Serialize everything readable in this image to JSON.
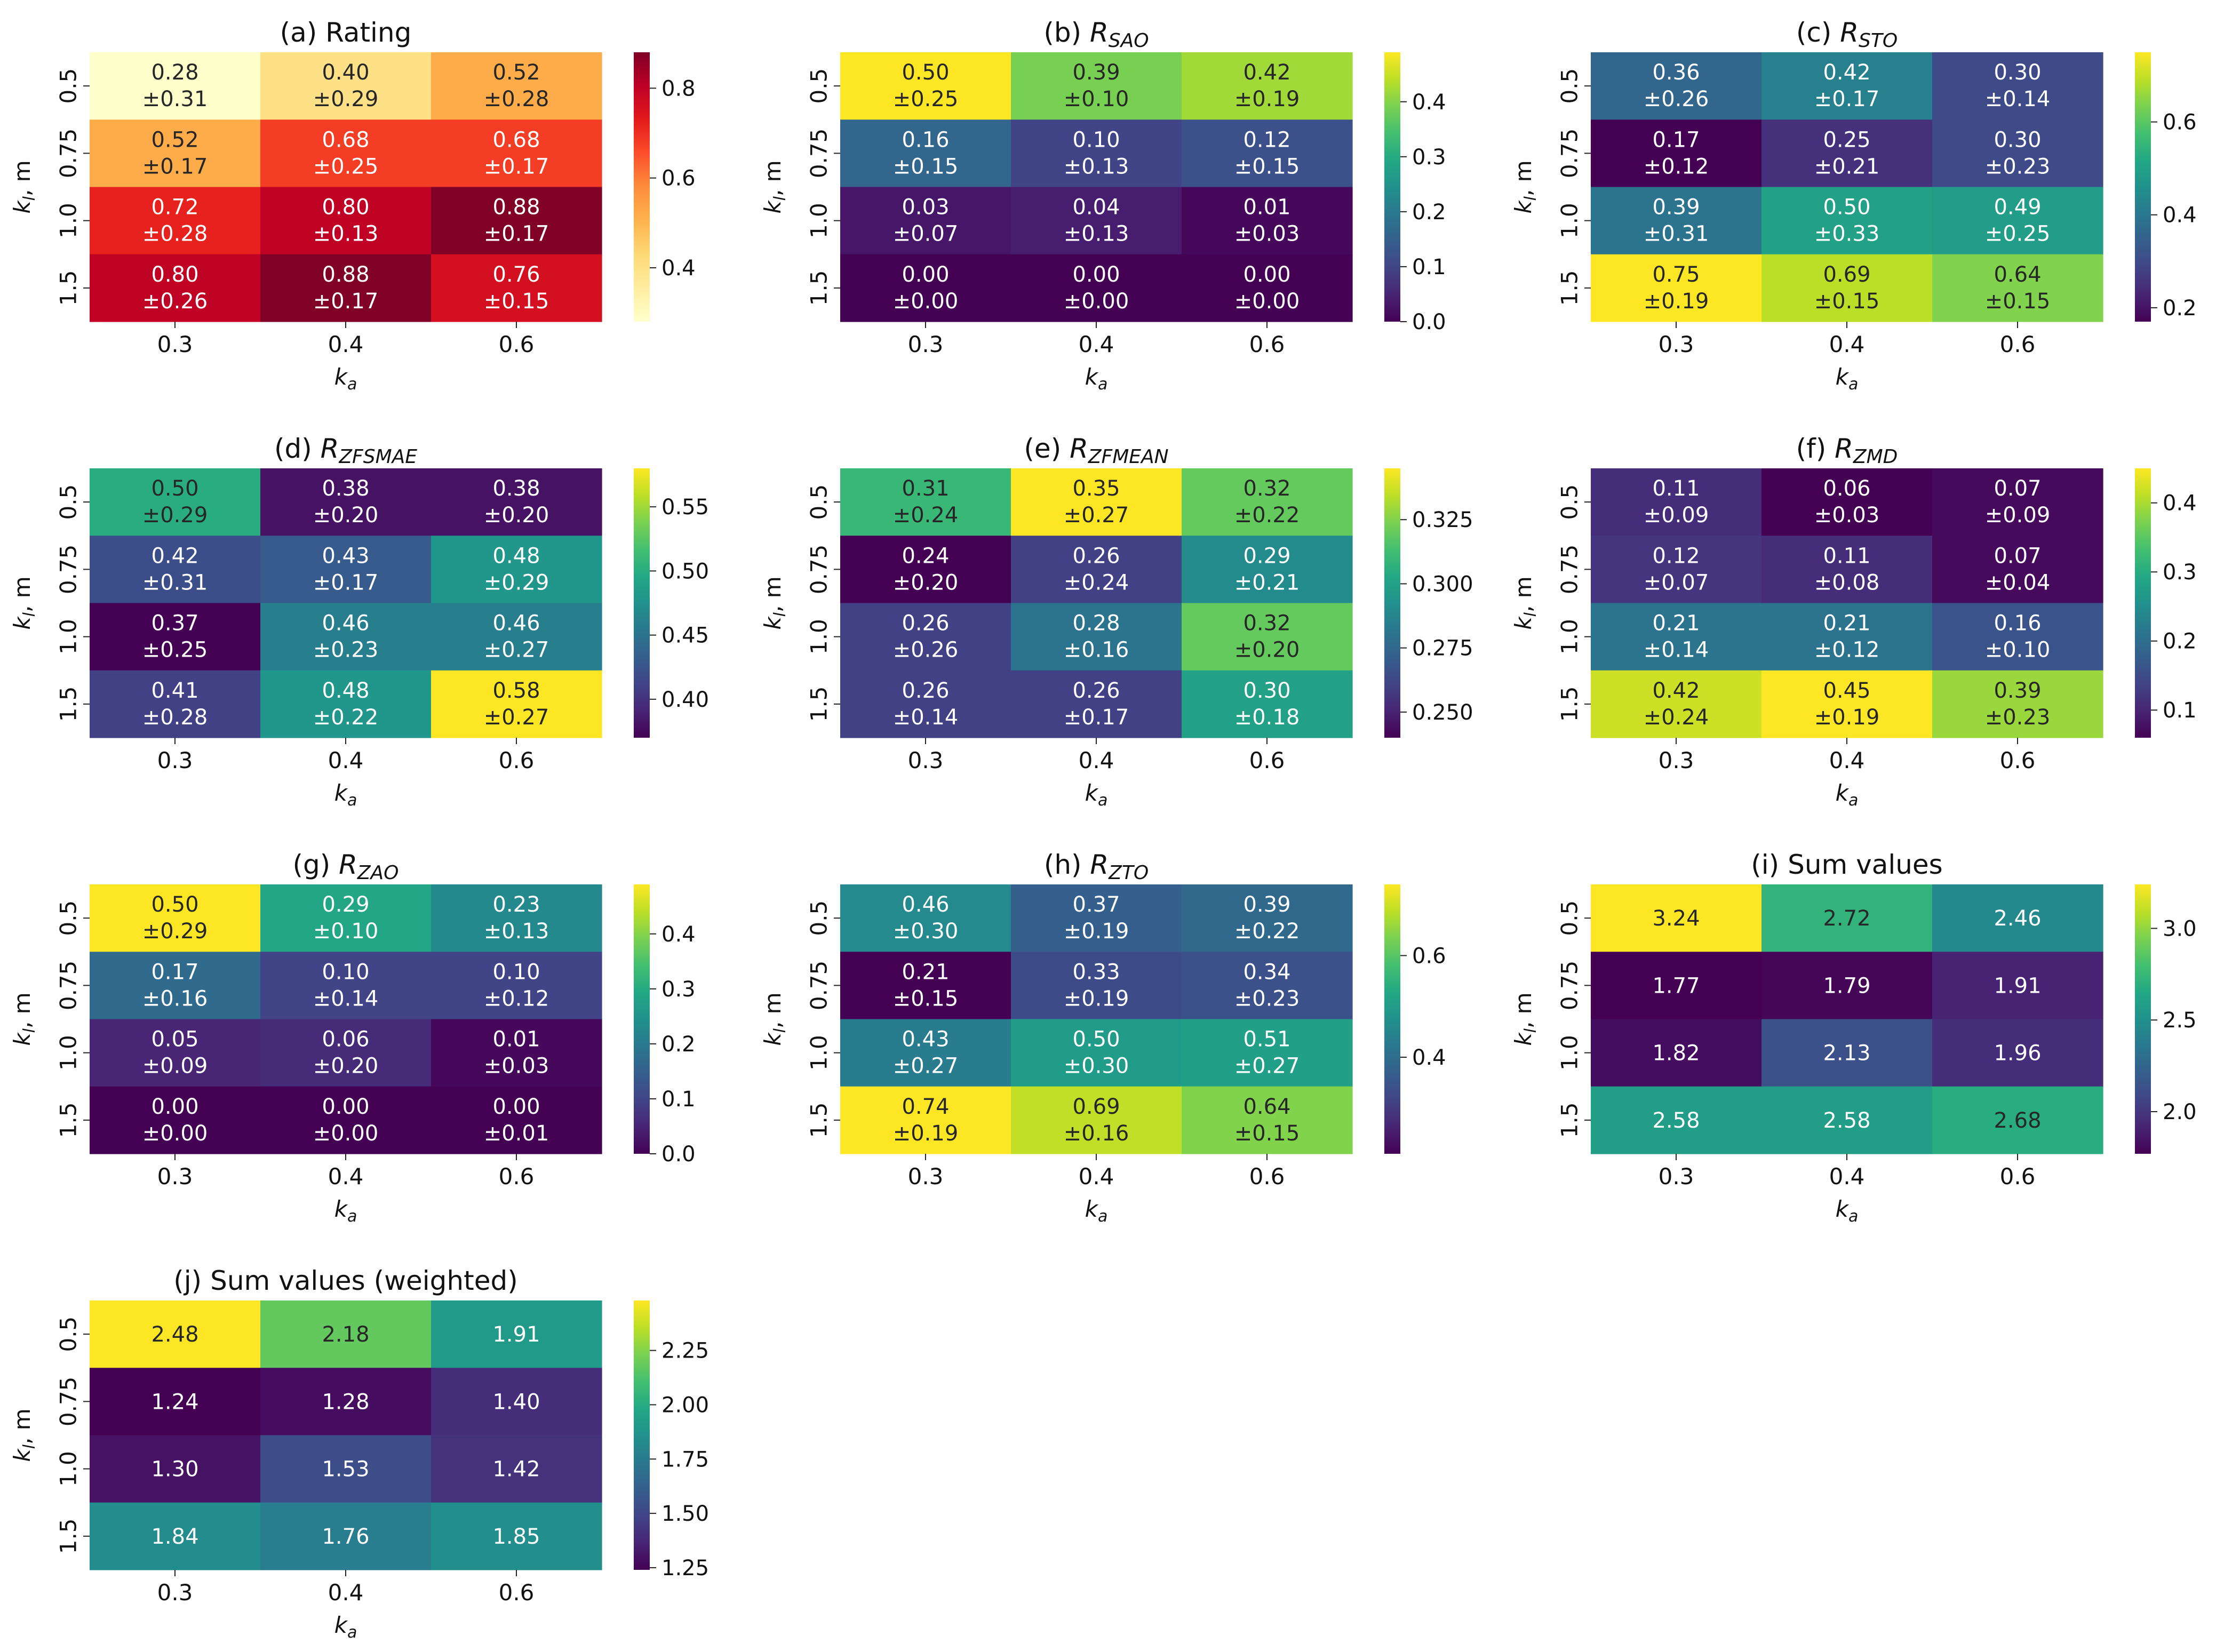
{
  "figure": {
    "x_tick_labels": [
      "0.3",
      "0.4",
      "0.6"
    ],
    "y_tick_labels": [
      "0.5",
      "0.75",
      "1.0",
      "1.5"
    ],
    "x_label": {
      "main": "k",
      "sub": "a"
    },
    "y_label": {
      "main": "k",
      "sub": "l",
      "suffix": ", m"
    }
  },
  "chart_data": [
    {
      "id": "a",
      "type": "heatmap",
      "cmap": "YlOrRd",
      "title": {
        "prefix": "(a) ",
        "main": "Rating",
        "sub": ""
      },
      "categories_x": [
        "0.3",
        "0.4",
        "0.6"
      ],
      "categories_y": [
        "0.5",
        "0.75",
        "1.0",
        "1.5"
      ],
      "values": [
        [
          0.28,
          0.4,
          0.52
        ],
        [
          0.52,
          0.68,
          0.68
        ],
        [
          0.72,
          0.8,
          0.88
        ],
        [
          0.8,
          0.88,
          0.76
        ]
      ],
      "std": [
        [
          0.31,
          0.29,
          0.28
        ],
        [
          0.17,
          0.25,
          0.17
        ],
        [
          0.28,
          0.13,
          0.17
        ],
        [
          0.26,
          0.17,
          0.15
        ]
      ],
      "color_range": [
        0.28,
        0.88
      ],
      "colorbar_ticks": [
        0.4,
        0.6,
        0.8
      ],
      "colorbar_labels": [
        "0.4",
        "0.6",
        "0.8"
      ]
    },
    {
      "id": "b",
      "type": "heatmap",
      "cmap": "viridis",
      "title": {
        "prefix": "(b) ",
        "main": "R",
        "sub": "SAO"
      },
      "categories_x": [
        "0.3",
        "0.4",
        "0.6"
      ],
      "categories_y": [
        "0.5",
        "0.75",
        "1.0",
        "1.5"
      ],
      "values": [
        [
          0.5,
          0.39,
          0.42
        ],
        [
          0.16,
          0.1,
          0.12
        ],
        [
          0.03,
          0.04,
          0.01
        ],
        [
          0.0,
          0.0,
          0.0
        ]
      ],
      "std": [
        [
          0.25,
          0.1,
          0.19
        ],
        [
          0.15,
          0.13,
          0.15
        ],
        [
          0.07,
          0.13,
          0.03
        ],
        [
          0.0,
          0.0,
          0.0
        ]
      ],
      "color_range": [
        0.0,
        0.49
      ],
      "colorbar_ticks": [
        0.0,
        0.1,
        0.2,
        0.3,
        0.4
      ],
      "colorbar_labels": [
        "0.0",
        "0.1",
        "0.2",
        "0.3",
        "0.4"
      ]
    },
    {
      "id": "c",
      "type": "heatmap",
      "cmap": "viridis",
      "title": {
        "prefix": "(c) ",
        "main": "R",
        "sub": "STO"
      },
      "categories_x": [
        "0.3",
        "0.4",
        "0.6"
      ],
      "categories_y": [
        "0.5",
        "0.75",
        "1.0",
        "1.5"
      ],
      "values": [
        [
          0.36,
          0.42,
          0.3
        ],
        [
          0.17,
          0.25,
          0.3
        ],
        [
          0.39,
          0.5,
          0.49
        ],
        [
          0.75,
          0.69,
          0.64
        ]
      ],
      "std": [
        [
          0.26,
          0.17,
          0.14
        ],
        [
          0.12,
          0.21,
          0.23
        ],
        [
          0.31,
          0.33,
          0.25
        ],
        [
          0.19,
          0.15,
          0.15
        ]
      ],
      "color_range": [
        0.17,
        0.75
      ],
      "colorbar_ticks": [
        0.2,
        0.4,
        0.6
      ],
      "colorbar_labels": [
        "0.2",
        "0.4",
        "0.6"
      ]
    },
    {
      "id": "d",
      "type": "heatmap",
      "cmap": "viridis",
      "title": {
        "prefix": "(d) ",
        "main": "R",
        "sub": "ZFSMAE"
      },
      "categories_x": [
        "0.3",
        "0.4",
        "0.6"
      ],
      "categories_y": [
        "0.5",
        "0.75",
        "1.0",
        "1.5"
      ],
      "values": [
        [
          0.5,
          0.38,
          0.38
        ],
        [
          0.42,
          0.43,
          0.48
        ],
        [
          0.37,
          0.46,
          0.46
        ],
        [
          0.41,
          0.48,
          0.58
        ]
      ],
      "std": [
        [
          0.29,
          0.2,
          0.2
        ],
        [
          0.31,
          0.17,
          0.29
        ],
        [
          0.25,
          0.23,
          0.27
        ],
        [
          0.28,
          0.22,
          0.27
        ]
      ],
      "color_range": [
        0.37,
        0.58
      ],
      "colorbar_ticks": [
        0.4,
        0.45,
        0.5,
        0.55
      ],
      "colorbar_labels": [
        "0.40",
        "0.45",
        "0.50",
        "0.55"
      ]
    },
    {
      "id": "e",
      "type": "heatmap",
      "cmap": "viridis",
      "title": {
        "prefix": "(e) ",
        "main": "R",
        "sub": "ZFMEAN"
      },
      "categories_x": [
        "0.3",
        "0.4",
        "0.6"
      ],
      "categories_y": [
        "0.5",
        "0.75",
        "1.0",
        "1.5"
      ],
      "values": [
        [
          0.31,
          0.35,
          0.32
        ],
        [
          0.24,
          0.26,
          0.29
        ],
        [
          0.26,
          0.28,
          0.32
        ],
        [
          0.26,
          0.26,
          0.3
        ]
      ],
      "std": [
        [
          0.24,
          0.27,
          0.22
        ],
        [
          0.2,
          0.24,
          0.21
        ],
        [
          0.26,
          0.16,
          0.2
        ],
        [
          0.14,
          0.17,
          0.18
        ]
      ],
      "color_range": [
        0.24,
        0.345
      ],
      "colorbar_ticks": [
        0.25,
        0.275,
        0.3,
        0.325
      ],
      "colorbar_labels": [
        "0.250",
        "0.275",
        "0.300",
        "0.325"
      ]
    },
    {
      "id": "f",
      "type": "heatmap",
      "cmap": "viridis",
      "title": {
        "prefix": "(f) ",
        "main": "R",
        "sub": "ZMD"
      },
      "categories_x": [
        "0.3",
        "0.4",
        "0.6"
      ],
      "categories_y": [
        "0.5",
        "0.75",
        "1.0",
        "1.5"
      ],
      "values": [
        [
          0.11,
          0.06,
          0.07
        ],
        [
          0.12,
          0.11,
          0.07
        ],
        [
          0.21,
          0.21,
          0.16
        ],
        [
          0.42,
          0.45,
          0.39
        ]
      ],
      "std": [
        [
          0.09,
          0.03,
          0.09
        ],
        [
          0.07,
          0.08,
          0.04
        ],
        [
          0.14,
          0.12,
          0.1
        ],
        [
          0.24,
          0.19,
          0.23
        ]
      ],
      "color_range": [
        0.06,
        0.45
      ],
      "colorbar_ticks": [
        0.1,
        0.2,
        0.3,
        0.4
      ],
      "colorbar_labels": [
        "0.1",
        "0.2",
        "0.3",
        "0.4"
      ]
    },
    {
      "id": "g",
      "type": "heatmap",
      "cmap": "viridis",
      "title": {
        "prefix": "(g) ",
        "main": "R",
        "sub": "ZAO"
      },
      "categories_x": [
        "0.3",
        "0.4",
        "0.6"
      ],
      "categories_y": [
        "0.5",
        "0.75",
        "1.0",
        "1.5"
      ],
      "values": [
        [
          0.5,
          0.29,
          0.23
        ],
        [
          0.17,
          0.1,
          0.1
        ],
        [
          0.05,
          0.06,
          0.01
        ],
        [
          0.0,
          0.0,
          0.0
        ]
      ],
      "std": [
        [
          0.29,
          0.1,
          0.13
        ],
        [
          0.16,
          0.14,
          0.12
        ],
        [
          0.09,
          0.2,
          0.03
        ],
        [
          0.0,
          0.0,
          0.01
        ]
      ],
      "color_range": [
        0.0,
        0.49
      ],
      "colorbar_ticks": [
        0.0,
        0.1,
        0.2,
        0.3,
        0.4
      ],
      "colorbar_labels": [
        "0.0",
        "0.1",
        "0.2",
        "0.3",
        "0.4"
      ]
    },
    {
      "id": "h",
      "type": "heatmap",
      "cmap": "viridis",
      "title": {
        "prefix": "(h) ",
        "main": "R",
        "sub": "ZTO"
      },
      "categories_x": [
        "0.3",
        "0.4",
        "0.6"
      ],
      "categories_y": [
        "0.5",
        "0.75",
        "1.0",
        "1.5"
      ],
      "values": [
        [
          0.46,
          0.37,
          0.39
        ],
        [
          0.21,
          0.33,
          0.34
        ],
        [
          0.43,
          0.5,
          0.51
        ],
        [
          0.74,
          0.69,
          0.64
        ]
      ],
      "std": [
        [
          0.3,
          0.19,
          0.22
        ],
        [
          0.15,
          0.19,
          0.23
        ],
        [
          0.27,
          0.3,
          0.27
        ],
        [
          0.19,
          0.16,
          0.15
        ]
      ],
      "color_range": [
        0.21,
        0.74
      ],
      "colorbar_ticks": [
        0.4,
        0.6
      ],
      "colorbar_labels": [
        "0.4",
        "0.6"
      ]
    },
    {
      "id": "i",
      "type": "heatmap",
      "cmap": "viridis",
      "title": {
        "prefix": "(i) ",
        "main": "Sum values",
        "sub": ""
      },
      "categories_x": [
        "0.3",
        "0.4",
        "0.6"
      ],
      "categories_y": [
        "0.5",
        "0.75",
        "1.0",
        "1.5"
      ],
      "values": [
        [
          3.24,
          2.72,
          2.46
        ],
        [
          1.77,
          1.79,
          1.91
        ],
        [
          1.82,
          2.13,
          1.96
        ],
        [
          2.58,
          2.58,
          2.68
        ]
      ],
      "std": null,
      "color_range": [
        1.77,
        3.24
      ],
      "colorbar_ticks": [
        2.0,
        2.5,
        3.0
      ],
      "colorbar_labels": [
        "2.0",
        "2.5",
        "3.0"
      ]
    },
    {
      "id": "j",
      "type": "heatmap",
      "cmap": "viridis",
      "title": {
        "prefix": "(j) ",
        "main": "Sum values (weighted)",
        "sub": ""
      },
      "categories_x": [
        "0.3",
        "0.4",
        "0.6"
      ],
      "categories_y": [
        "0.5",
        "0.75",
        "1.0",
        "1.5"
      ],
      "values": [
        [
          2.48,
          2.18,
          1.91
        ],
        [
          1.24,
          1.28,
          1.4
        ],
        [
          1.3,
          1.53,
          1.42
        ],
        [
          1.84,
          1.76,
          1.85
        ]
      ],
      "std": null,
      "color_range": [
        1.24,
        2.48
      ],
      "colorbar_ticks": [
        1.25,
        1.5,
        1.75,
        2.0,
        2.25
      ],
      "colorbar_labels": [
        "1.25",
        "1.50",
        "1.75",
        "2.00",
        "2.25"
      ]
    }
  ]
}
